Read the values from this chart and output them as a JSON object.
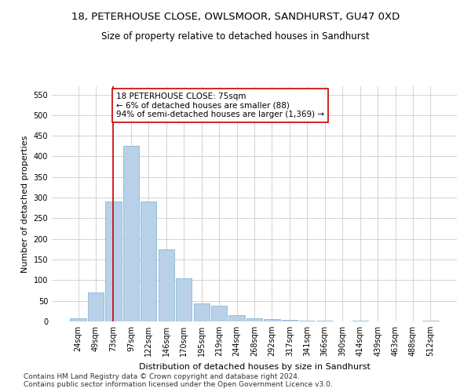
{
  "title": "18, PETERHOUSE CLOSE, OWLSMOOR, SANDHURST, GU47 0XD",
  "subtitle": "Size of property relative to detached houses in Sandhurst",
  "xlabel": "Distribution of detached houses by size in Sandhurst",
  "ylabel": "Number of detached properties",
  "bar_color": "#b8d0e8",
  "bar_edge_color": "#7aafd4",
  "categories": [
    "24sqm",
    "49sqm",
    "73sqm",
    "97sqm",
    "122sqm",
    "146sqm",
    "170sqm",
    "195sqm",
    "219sqm",
    "244sqm",
    "268sqm",
    "292sqm",
    "317sqm",
    "341sqm",
    "366sqm",
    "390sqm",
    "414sqm",
    "439sqm",
    "463sqm",
    "488sqm",
    "512sqm"
  ],
  "values": [
    8,
    70,
    290,
    425,
    290,
    175,
    105,
    43,
    38,
    16,
    8,
    6,
    3,
    1,
    2,
    0,
    1,
    0,
    0,
    0,
    2
  ],
  "ylim": [
    0,
    570
  ],
  "yticks": [
    0,
    50,
    100,
    150,
    200,
    250,
    300,
    350,
    400,
    450,
    500,
    550
  ],
  "vline_x": 2,
  "vline_color": "#cc0000",
  "annotation_text": "18 PETERHOUSE CLOSE: 75sqm\n← 6% of detached houses are smaller (88)\n94% of semi-detached houses are larger (1,369) →",
  "annotation_box_color": "#ffffff",
  "annotation_box_edge": "#cc0000",
  "footer_line1": "Contains HM Land Registry data © Crown copyright and database right 2024.",
  "footer_line2": "Contains public sector information licensed under the Open Government Licence v3.0.",
  "bg_color": "#ffffff",
  "grid_color": "#cccccc",
  "title_fontsize": 9.5,
  "subtitle_fontsize": 8.5,
  "axis_label_fontsize": 8,
  "tick_fontsize": 7,
  "footer_fontsize": 6.5,
  "annotation_fontsize": 7.5
}
